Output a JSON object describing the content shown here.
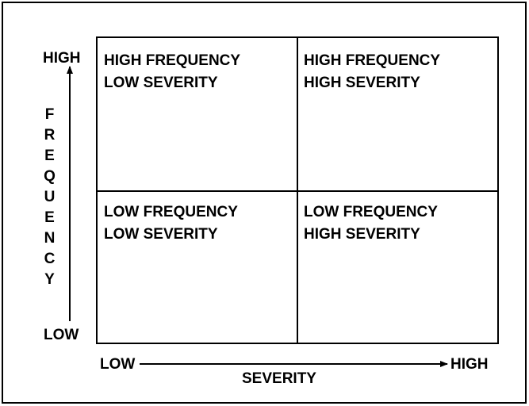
{
  "y_axis": {
    "high": "HIGH",
    "label": "FREQUENCY",
    "low": "LOW"
  },
  "x_axis": {
    "low": "LOW",
    "label": "SEVERITY",
    "high": "HIGH"
  },
  "quadrants": [
    {
      "lines": [
        "HIGH FREQUENCY",
        "LOW SEVERITY"
      ]
    },
    {
      "lines": [
        "HIGH FREQUENCY",
        "HIGH SEVERITY"
      ]
    },
    {
      "lines": [
        "LOW FREQUENCY",
        "LOW SEVERITY"
      ]
    },
    {
      "lines": [
        "LOW FREQUENCY",
        "HIGH SEVERITY"
      ]
    }
  ]
}
